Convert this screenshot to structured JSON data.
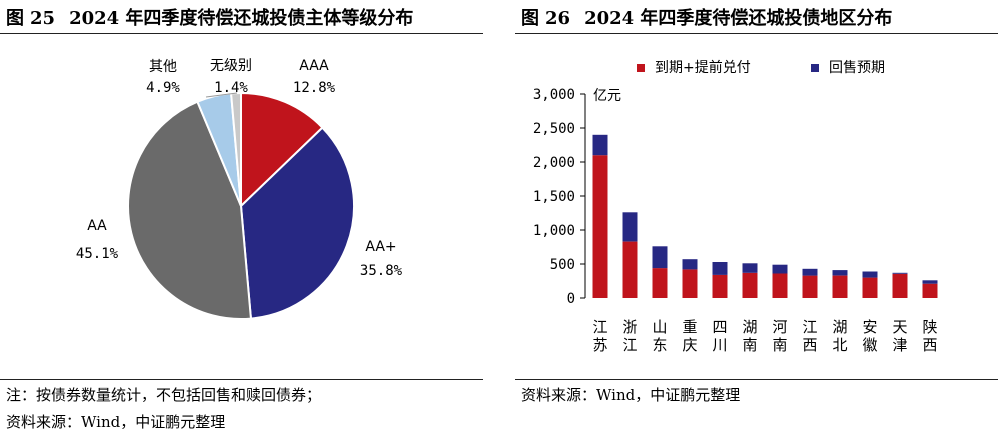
{
  "left": {
    "fig_label": "图",
    "fig_number": "25",
    "title": "2024 年四季度待偿还城投债主体等级分布",
    "notes": [
      "注：按债券数量统计，不包括回售和赎回债券；",
      "资料来源：Wind，中证鹏元整理"
    ]
  },
  "right": {
    "fig_label": "图",
    "fig_number": "26",
    "title": "2024 年四季度待偿还城投债地区分布",
    "notes": [
      "资料来源：Wind，中证鹏元整理"
    ]
  },
  "chart_data": [
    {
      "type": "pie",
      "title": "2024 年四季度待偿还城投债主体等级分布",
      "slices": [
        {
          "label": "AAA",
          "value": 12.8,
          "value_label": "12.8%",
          "color": "#c0141c"
        },
        {
          "label": "AA+",
          "value": 35.8,
          "value_label": "35.8%",
          "color": "#272883"
        },
        {
          "label": "AA",
          "value": 45.1,
          "value_label": "45.1%",
          "color": "#6a6a6a"
        },
        {
          "label": "其他",
          "value": 4.9,
          "value_label": "4.9%",
          "color": "#a7cbe9"
        },
        {
          "label": "无级别",
          "value": 1.4,
          "value_label": "1.4%",
          "color": "#c9c9c9"
        }
      ]
    },
    {
      "type": "bar",
      "stacked": true,
      "title": "2024 年四季度待偿还城投债地区分布",
      "ylabel": "亿元",
      "ylim": [
        0,
        3000
      ],
      "yticks": [
        0,
        500,
        1000,
        1500,
        2000,
        2500,
        3000
      ],
      "ytick_labels": [
        "0",
        "500",
        "1,000",
        "1,500",
        "2,000",
        "2,500",
        "3,000"
      ],
      "categories": [
        "江苏",
        "浙江",
        "山东",
        "重庆",
        "四川",
        "湖南",
        "河南",
        "江西",
        "湖北",
        "安徽",
        "天津",
        "陕西"
      ],
      "series": [
        {
          "name": "到期+提前兑付",
          "color": "#c0141c",
          "values": [
            2100,
            830,
            440,
            420,
            340,
            370,
            360,
            330,
            330,
            300,
            355,
            210
          ]
        },
        {
          "name": "回售预期",
          "color": "#272883",
          "values": [
            300,
            430,
            320,
            150,
            190,
            140,
            130,
            100,
            80,
            90,
            15,
            50
          ]
        }
      ],
      "legend_position": "top",
      "grid": false
    }
  ]
}
